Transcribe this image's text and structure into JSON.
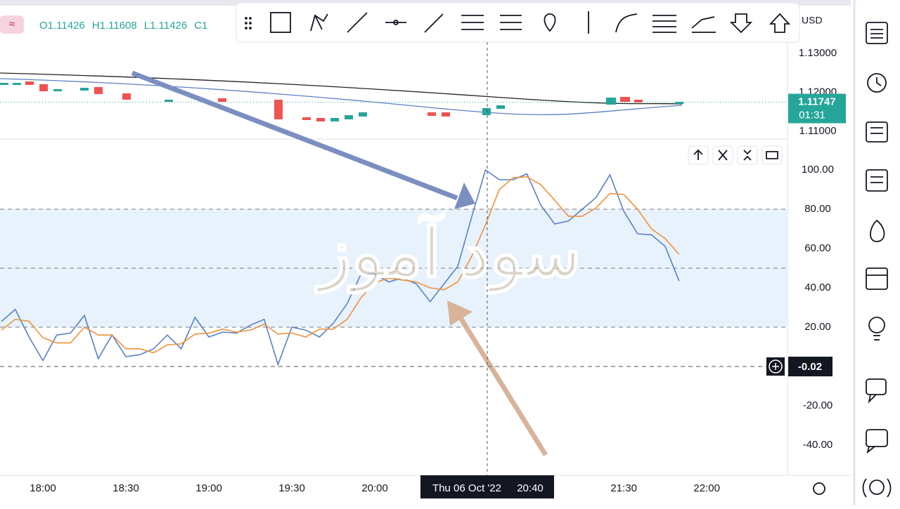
{
  "header": {
    "ohlc": [
      "O1.11426",
      "H1.11608",
      "L1.11426",
      "C1"
    ],
    "currency": "USD"
  },
  "price_pane": {
    "yticks": [
      {
        "value": 1.13,
        "label": "1.13000"
      },
      {
        "value": 1.12,
        "label": "1.12000"
      },
      {
        "value": 1.11,
        "label": "1.11000"
      }
    ],
    "last_price": {
      "value": 1.11747,
      "label": "1.11747"
    },
    "countdown": "01:31"
  },
  "watermark": "سود آموز",
  "chart_data": {
    "type": "line",
    "categories": [
      null,
      null,
      null,
      "18:00",
      null,
      null,
      null,
      null,
      null,
      "18:30",
      null,
      null,
      null,
      null,
      null,
      "19:00",
      null,
      null,
      null,
      null,
      null,
      "19:30",
      null,
      null,
      null,
      null,
      null,
      "20:00",
      null,
      null,
      null,
      null,
      null,
      null,
      null,
      null,
      null,
      null,
      null,
      null,
      null,
      null,
      null,
      null,
      null,
      "21:30",
      null,
      null,
      null,
      null,
      null,
      "22:00"
    ],
    "series": [
      {
        "color": "#5b7fc4",
        "values": [
          22.9,
          29,
          15,
          3,
          16,
          17,
          26,
          4,
          16,
          5,
          6,
          9,
          16,
          9,
          25,
          15,
          17.5,
          17,
          21,
          24,
          1,
          20,
          18.5,
          15,
          22,
          32,
          47,
          47,
          43,
          45,
          42,
          33,
          42,
          51,
          76,
          100,
          95,
          95,
          98,
          82,
          72.5,
          74,
          80,
          86,
          97.5,
          79,
          67.5,
          67,
          61,
          43.5,
          null,
          null
        ]
      },
      {
        "color": "#f0913a",
        "values": [
          18.5,
          24,
          23,
          14.6,
          12,
          12,
          20,
          16,
          16,
          9,
          9,
          7,
          11,
          11.5,
          16.5,
          17,
          19,
          17.5,
          18.5,
          21.5,
          16.5,
          17,
          15,
          19,
          19,
          24,
          35,
          42.5,
          45,
          44,
          43,
          40,
          39,
          43,
          56,
          72,
          90,
          96,
          96.5,
          92.5,
          84.6,
          76.4,
          76.4,
          80.7,
          88,
          87.5,
          80,
          70,
          65,
          57,
          null,
          null
        ]
      }
    ],
    "ylim": [
      -55,
      115
    ],
    "yticks": [
      {
        "value": 100,
        "label": "100.00"
      },
      {
        "value": 80,
        "label": "80.00"
      },
      {
        "value": 60,
        "label": "60.00"
      },
      {
        "value": 40,
        "label": "40.00"
      },
      {
        "value": 20,
        "label": "20.00"
      },
      {
        "value": -20,
        "label": "-20.00"
      },
      {
        "value": -40,
        "label": "-40.00"
      }
    ],
    "levels": [
      80,
      50,
      20
    ],
    "crosshair": {
      "date": "Thu 06 Oct '22",
      "time": "20:40",
      "value": {
        "value": -0.02,
        "label": "-0.02"
      }
    }
  }
}
